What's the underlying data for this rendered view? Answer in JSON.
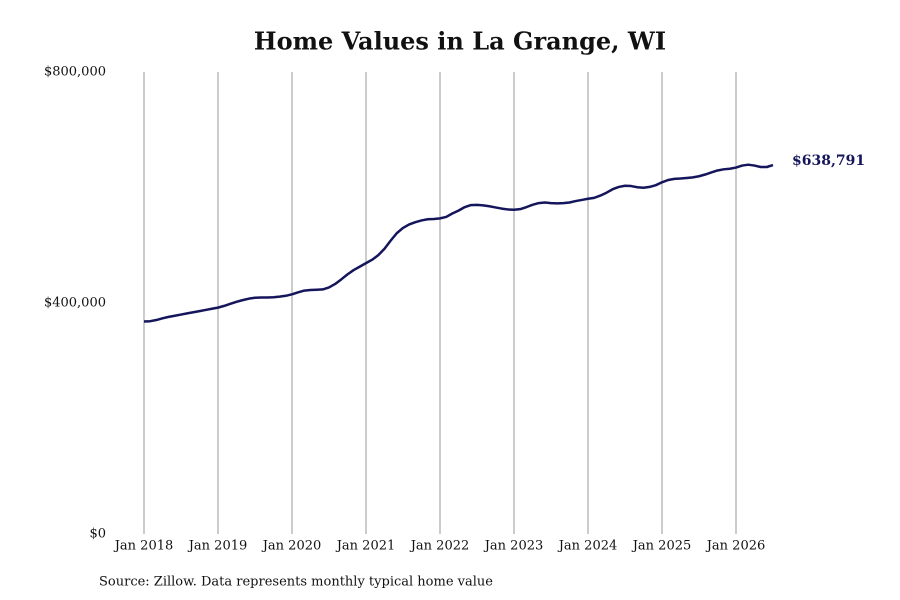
{
  "chart_data": {
    "type": "line",
    "title": "Home Values in La Grange, WI",
    "source": "Source: Zillow. Data represents monthly typical home value",
    "color": "#15155c",
    "grid": "x",
    "xlim": [
      "2018-01",
      "2026-07"
    ],
    "ylim": [
      0,
      800000
    ],
    "yticks": [
      {
        "value": 0,
        "label": "$0"
      },
      {
        "value": 400000,
        "label": "$400,000"
      },
      {
        "value": 800000,
        "label": "$800,000"
      }
    ],
    "xticks": [
      {
        "value": "2018-01",
        "label": "Jan 2018"
      },
      {
        "value": "2019-01",
        "label": "Jan 2019"
      },
      {
        "value": "2020-01",
        "label": "Jan 2020"
      },
      {
        "value": "2021-01",
        "label": "Jan 2021"
      },
      {
        "value": "2022-01",
        "label": "Jan 2022"
      },
      {
        "value": "2023-01",
        "label": "Jan 2023"
      },
      {
        "value": "2024-01",
        "label": "Jan 2024"
      },
      {
        "value": "2025-01",
        "label": "Jan 2025"
      },
      {
        "value": "2026-01",
        "label": "Jan 2026"
      }
    ],
    "x": [
      "2018-01",
      "2018-02",
      "2018-03",
      "2018-04",
      "2018-05",
      "2018-06",
      "2018-07",
      "2018-08",
      "2018-09",
      "2018-10",
      "2018-11",
      "2018-12",
      "2019-01",
      "2019-02",
      "2019-03",
      "2019-04",
      "2019-05",
      "2019-06",
      "2019-07",
      "2019-08",
      "2019-09",
      "2019-10",
      "2019-11",
      "2019-12",
      "2020-01",
      "2020-02",
      "2020-03",
      "2020-04",
      "2020-05",
      "2020-06",
      "2020-07",
      "2020-08",
      "2020-09",
      "2020-10",
      "2020-11",
      "2020-12",
      "2021-01",
      "2021-02",
      "2021-03",
      "2021-04",
      "2021-05",
      "2021-06",
      "2021-07",
      "2021-08",
      "2021-09",
      "2021-10",
      "2021-11",
      "2021-12",
      "2022-01",
      "2022-02",
      "2022-03",
      "2022-04",
      "2022-05",
      "2022-06",
      "2022-07",
      "2022-08",
      "2022-09",
      "2022-10",
      "2022-11",
      "2022-12",
      "2023-01",
      "2023-02",
      "2023-03",
      "2023-04",
      "2023-05",
      "2023-06",
      "2023-07",
      "2023-08",
      "2023-09",
      "2023-10",
      "2023-11",
      "2023-12",
      "2024-01",
      "2024-02",
      "2024-03",
      "2024-04",
      "2024-05",
      "2024-06",
      "2024-07",
      "2024-08",
      "2024-09",
      "2024-10",
      "2024-11",
      "2024-12",
      "2025-01",
      "2025-02",
      "2025-03",
      "2025-04",
      "2025-05",
      "2025-06",
      "2025-07",
      "2025-08",
      "2025-09",
      "2025-10",
      "2025-11",
      "2025-12",
      "2026-01",
      "2026-02",
      "2026-03",
      "2026-04",
      "2026-05",
      "2026-06",
      "2026-07"
    ],
    "values": [
      368000,
      368500,
      370500,
      373500,
      376000,
      378000,
      380000,
      382000,
      384000,
      386000,
      388000,
      390000,
      392000,
      395000,
      398500,
      402000,
      405000,
      407500,
      409000,
      409500,
      409500,
      410000,
      411000,
      412500,
      415000,
      418500,
      421500,
      422500,
      423000,
      423500,
      427000,
      433000,
      441000,
      449500,
      457000,
      463000,
      469000,
      475000,
      483000,
      494000,
      508000,
      521000,
      530000,
      536000,
      540000,
      543000,
      545000,
      545500,
      546500,
      549000,
      555000,
      560000,
      566000,
      569500,
      570000,
      569000,
      567500,
      565500,
      563500,
      562000,
      561500,
      562500,
      566000,
      570000,
      573000,
      574000,
      573000,
      572500,
      573000,
      574000,
      576500,
      578500,
      580500,
      582000,
      586000,
      591000,
      597000,
      601000,
      603000,
      602500,
      600500,
      599500,
      601000,
      604000,
      609000,
      613000,
      615000,
      615500,
      616500,
      617500,
      619500,
      622500,
      626000,
      629500,
      631500,
      632500,
      634500,
      638000,
      639500,
      638000,
      635500,
      635500,
      638791
    ],
    "value_labels": [
      null,
      null,
      null,
      null,
      null,
      null,
      null,
      null,
      null,
      null,
      null,
      null,
      null,
      null,
      null,
      null,
      null,
      null,
      null,
      null,
      null,
      null,
      null,
      null,
      null,
      null,
      null,
      null,
      null,
      null,
      null,
      null,
      null,
      null,
      null,
      null,
      null,
      null,
      null,
      null,
      null,
      null,
      null,
      null,
      null,
      null,
      null,
      null,
      null,
      null,
      null,
      null,
      null,
      null,
      null,
      null,
      null,
      null,
      null,
      null,
      null,
      null,
      null,
      null,
      null,
      null,
      null,
      null,
      null,
      null,
      null,
      null,
      null,
      null,
      null,
      null,
      null,
      null,
      null,
      null,
      null,
      null,
      null,
      null,
      null,
      null,
      null,
      null,
      null,
      null,
      null,
      null,
      null,
      null,
      null,
      null,
      null,
      null,
      null,
      null,
      null,
      null,
      "$638,791"
    ]
  }
}
